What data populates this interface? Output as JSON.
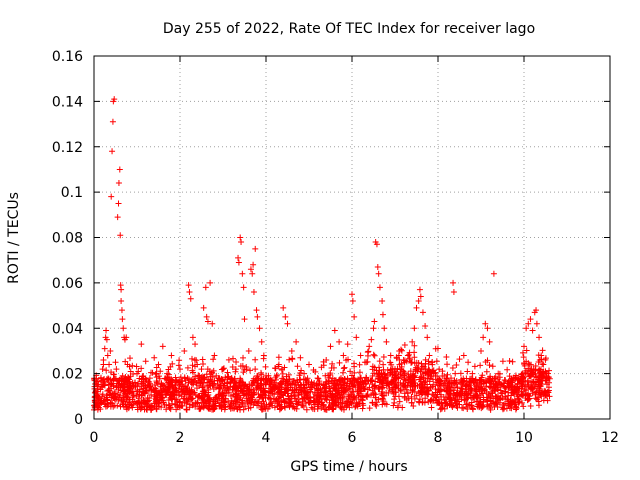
{
  "chart_data": {
    "type": "scatter",
    "title": "Day 255 of 2022, Rate Of TEC Index for receiver lago",
    "xlabel": "GPS time / hours",
    "ylabel": "ROTI / TECUs",
    "xlim": [
      0,
      12
    ],
    "ylim": [
      0,
      0.16
    ],
    "xticks": [
      0,
      2,
      4,
      6,
      8,
      10,
      12
    ],
    "yticks": [
      0,
      0.02,
      0.04,
      0.06,
      0.08,
      0.1,
      0.12,
      0.14,
      0.16
    ],
    "xtick_labels": [
      "0",
      "2",
      "4",
      "6",
      "8",
      "10",
      "12"
    ],
    "ytick_labels": [
      "0",
      "0.02",
      "0.04",
      "0.06",
      "0.08",
      "0.1",
      "0.12",
      "0.14",
      "0.16"
    ],
    "grid": true,
    "marker": "+",
    "series": [
      {
        "name": "ROTI",
        "color": "#ff0000",
        "points": [
          [
            0.0,
            0.004
          ],
          [
            0.0,
            0.006
          ],
          [
            0.02,
            0.008
          ],
          [
            0.02,
            0.01
          ],
          [
            0.04,
            0.012
          ],
          [
            0.05,
            0.007
          ],
          [
            0.08,
            0.01
          ],
          [
            0.12,
            0.009
          ],
          [
            0.15,
            0.013
          ],
          [
            0.18,
            0.017
          ],
          [
            0.2,
            0.022
          ],
          [
            0.22,
            0.026
          ],
          [
            0.25,
            0.031
          ],
          [
            0.27,
            0.036
          ],
          [
            0.28,
            0.039
          ],
          [
            0.3,
            0.035
          ],
          [
            0.32,
            0.028
          ],
          [
            0.35,
            0.024
          ],
          [
            0.38,
            0.03
          ],
          [
            0.4,
            0.098
          ],
          [
            0.42,
            0.118
          ],
          [
            0.44,
            0.131
          ],
          [
            0.45,
            0.14
          ],
          [
            0.47,
            0.141
          ],
          [
            0.5,
            0.025
          ],
          [
            0.52,
            0.022
          ],
          [
            0.55,
            0.089
          ],
          [
            0.57,
            0.095
          ],
          [
            0.58,
            0.104
          ],
          [
            0.6,
            0.11
          ],
          [
            0.61,
            0.081
          ],
          [
            0.62,
            0.059
          ],
          [
            0.63,
            0.057
          ],
          [
            0.63,
            0.052
          ],
          [
            0.65,
            0.048
          ],
          [
            0.66,
            0.044
          ],
          [
            0.68,
            0.04
          ],
          [
            0.7,
            0.036
          ],
          [
            0.72,
            0.035
          ],
          [
            0.75,
            0.036
          ],
          [
            0.78,
            0.024
          ],
          [
            0.8,
            0.018
          ],
          [
            0.85,
            0.015
          ],
          [
            0.9,
            0.012
          ],
          [
            0.95,
            0.016
          ],
          [
            1.0,
            0.02
          ],
          [
            1.1,
            0.033
          ],
          [
            1.2,
            0.014
          ],
          [
            1.3,
            0.018
          ],
          [
            1.4,
            0.027
          ],
          [
            1.5,
            0.024
          ],
          [
            1.6,
            0.032
          ],
          [
            1.7,
            0.02
          ],
          [
            1.8,
            0.028
          ],
          [
            1.9,
            0.016
          ],
          [
            2.0,
            0.022
          ],
          [
            2.1,
            0.03
          ],
          [
            2.2,
            0.059
          ],
          [
            2.22,
            0.056
          ],
          [
            2.25,
            0.053
          ],
          [
            2.3,
            0.036
          ],
          [
            2.35,
            0.033
          ],
          [
            2.4,
            0.024
          ],
          [
            2.45,
            0.019
          ],
          [
            2.5,
            0.022
          ],
          [
            2.55,
            0.049
          ],
          [
            2.6,
            0.058
          ],
          [
            2.62,
            0.045
          ],
          [
            2.65,
            0.043
          ],
          [
            2.7,
            0.06
          ],
          [
            2.75,
            0.042
          ],
          [
            2.8,
            0.028
          ],
          [
            2.9,
            0.018
          ],
          [
            3.0,
            0.022
          ],
          [
            3.1,
            0.014
          ],
          [
            3.2,
            0.018
          ],
          [
            3.3,
            0.022
          ],
          [
            3.35,
            0.071
          ],
          [
            3.37,
            0.069
          ],
          [
            3.4,
            0.08
          ],
          [
            3.42,
            0.078
          ],
          [
            3.45,
            0.064
          ],
          [
            3.48,
            0.058
          ],
          [
            3.5,
            0.044
          ],
          [
            3.55,
            0.022
          ],
          [
            3.6,
            0.03
          ],
          [
            3.65,
            0.066
          ],
          [
            3.68,
            0.064
          ],
          [
            3.7,
            0.068
          ],
          [
            3.72,
            0.056
          ],
          [
            3.75,
            0.075
          ],
          [
            3.78,
            0.048
          ],
          [
            3.8,
            0.045
          ],
          [
            3.85,
            0.04
          ],
          [
            3.9,
            0.034
          ],
          [
            3.95,
            0.028
          ],
          [
            4.0,
            0.019
          ],
          [
            4.1,
            0.012
          ],
          [
            4.2,
            0.016
          ],
          [
            4.3,
            0.024
          ],
          [
            4.4,
            0.049
          ],
          [
            4.45,
            0.045
          ],
          [
            4.5,
            0.042
          ],
          [
            4.6,
            0.03
          ],
          [
            4.7,
            0.034
          ],
          [
            4.8,
            0.027
          ],
          [
            5.0,
            0.024
          ],
          [
            5.2,
            0.018
          ],
          [
            5.4,
            0.026
          ],
          [
            5.5,
            0.032
          ],
          [
            5.6,
            0.039
          ],
          [
            5.7,
            0.034
          ],
          [
            5.8,
            0.028
          ],
          [
            5.9,
            0.033
          ],
          [
            6.0,
            0.055
          ],
          [
            6.02,
            0.052
          ],
          [
            6.05,
            0.045
          ],
          [
            6.1,
            0.036
          ],
          [
            6.2,
            0.028
          ],
          [
            6.3,
            0.025
          ],
          [
            6.4,
            0.032
          ],
          [
            6.45,
            0.035
          ],
          [
            6.5,
            0.04
          ],
          [
            6.52,
            0.043
          ],
          [
            6.55,
            0.078
          ],
          [
            6.58,
            0.077
          ],
          [
            6.6,
            0.067
          ],
          [
            6.62,
            0.064
          ],
          [
            6.65,
            0.058
          ],
          [
            6.7,
            0.052
          ],
          [
            6.72,
            0.046
          ],
          [
            6.75,
            0.04
          ],
          [
            6.8,
            0.034
          ],
          [
            6.9,
            0.028
          ],
          [
            7.0,
            0.022
          ],
          [
            7.1,
            0.03
          ],
          [
            7.2,
            0.026
          ],
          [
            7.3,
            0.028
          ],
          [
            7.4,
            0.034
          ],
          [
            7.45,
            0.04
          ],
          [
            7.5,
            0.049
          ],
          [
            7.55,
            0.052
          ],
          [
            7.58,
            0.057
          ],
          [
            7.6,
            0.054
          ],
          [
            7.65,
            0.047
          ],
          [
            7.7,
            0.041
          ],
          [
            7.75,
            0.036
          ],
          [
            7.8,
            0.028
          ],
          [
            7.9,
            0.02
          ],
          [
            8.0,
            0.016
          ],
          [
            8.2,
            0.018
          ],
          [
            8.35,
            0.06
          ],
          [
            8.37,
            0.056
          ],
          [
            8.4,
            0.02
          ],
          [
            8.6,
            0.028
          ],
          [
            8.7,
            0.025
          ],
          [
            8.8,
            0.02
          ],
          [
            9.0,
            0.03
          ],
          [
            9.05,
            0.036
          ],
          [
            9.1,
            0.042
          ],
          [
            9.15,
            0.04
          ],
          [
            9.2,
            0.034
          ],
          [
            9.3,
            0.064
          ],
          [
            9.4,
            0.02
          ],
          [
            9.6,
            0.014
          ],
          [
            9.8,
            0.018
          ],
          [
            10.0,
            0.032
          ],
          [
            10.05,
            0.04
          ],
          [
            10.1,
            0.042
          ],
          [
            10.15,
            0.044
          ],
          [
            10.2,
            0.039
          ],
          [
            10.25,
            0.047
          ],
          [
            10.28,
            0.048
          ],
          [
            10.3,
            0.042
          ],
          [
            10.35,
            0.036
          ],
          [
            10.4,
            0.028
          ],
          [
            10.45,
            0.024
          ],
          [
            10.5,
            0.021
          ],
          [
            10.55,
            0.018
          ],
          [
            10.58,
            0.014
          ]
        ]
      }
    ]
  }
}
